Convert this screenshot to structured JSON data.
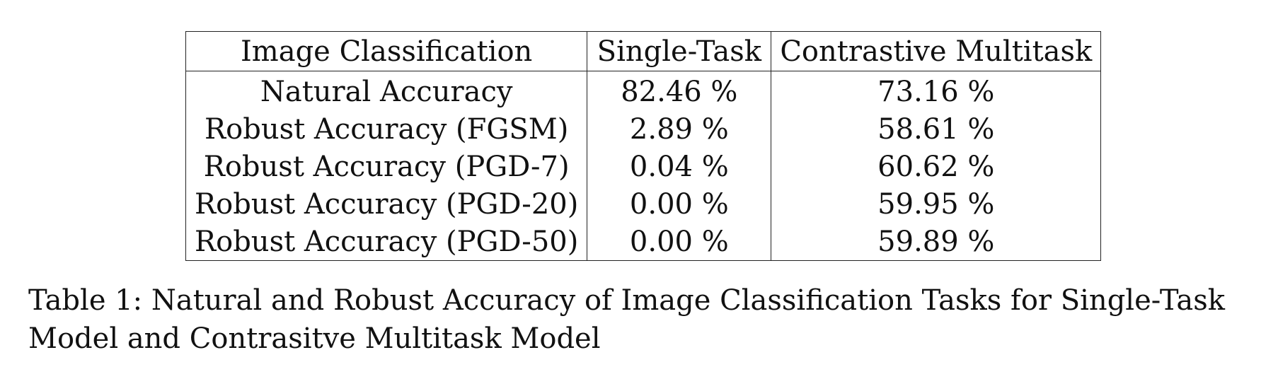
{
  "table": {
    "headers": [
      "Image Classification",
      "Single-Task",
      "Contrastive Multitask"
    ],
    "rows": [
      [
        "Natural Accuracy",
        "82.46 %",
        "73.16 %"
      ],
      [
        "Robust Accuracy (FGSM)",
        "2.89 %",
        "58.61 %"
      ],
      [
        "Robust Accuracy (PGD-7)",
        "0.04 %",
        "60.62 %"
      ],
      [
        "Robust Accuracy (PGD-20)",
        "0.00 %",
        "59.95 %"
      ],
      [
        "Robust Accuracy (PGD-50)",
        "0.00 %",
        "59.89 %"
      ]
    ]
  },
  "caption": "Table 1: Natural and Robust Accuracy of Image Classification Tasks for Single-Task Model and Contrasitve Multitask Model"
}
